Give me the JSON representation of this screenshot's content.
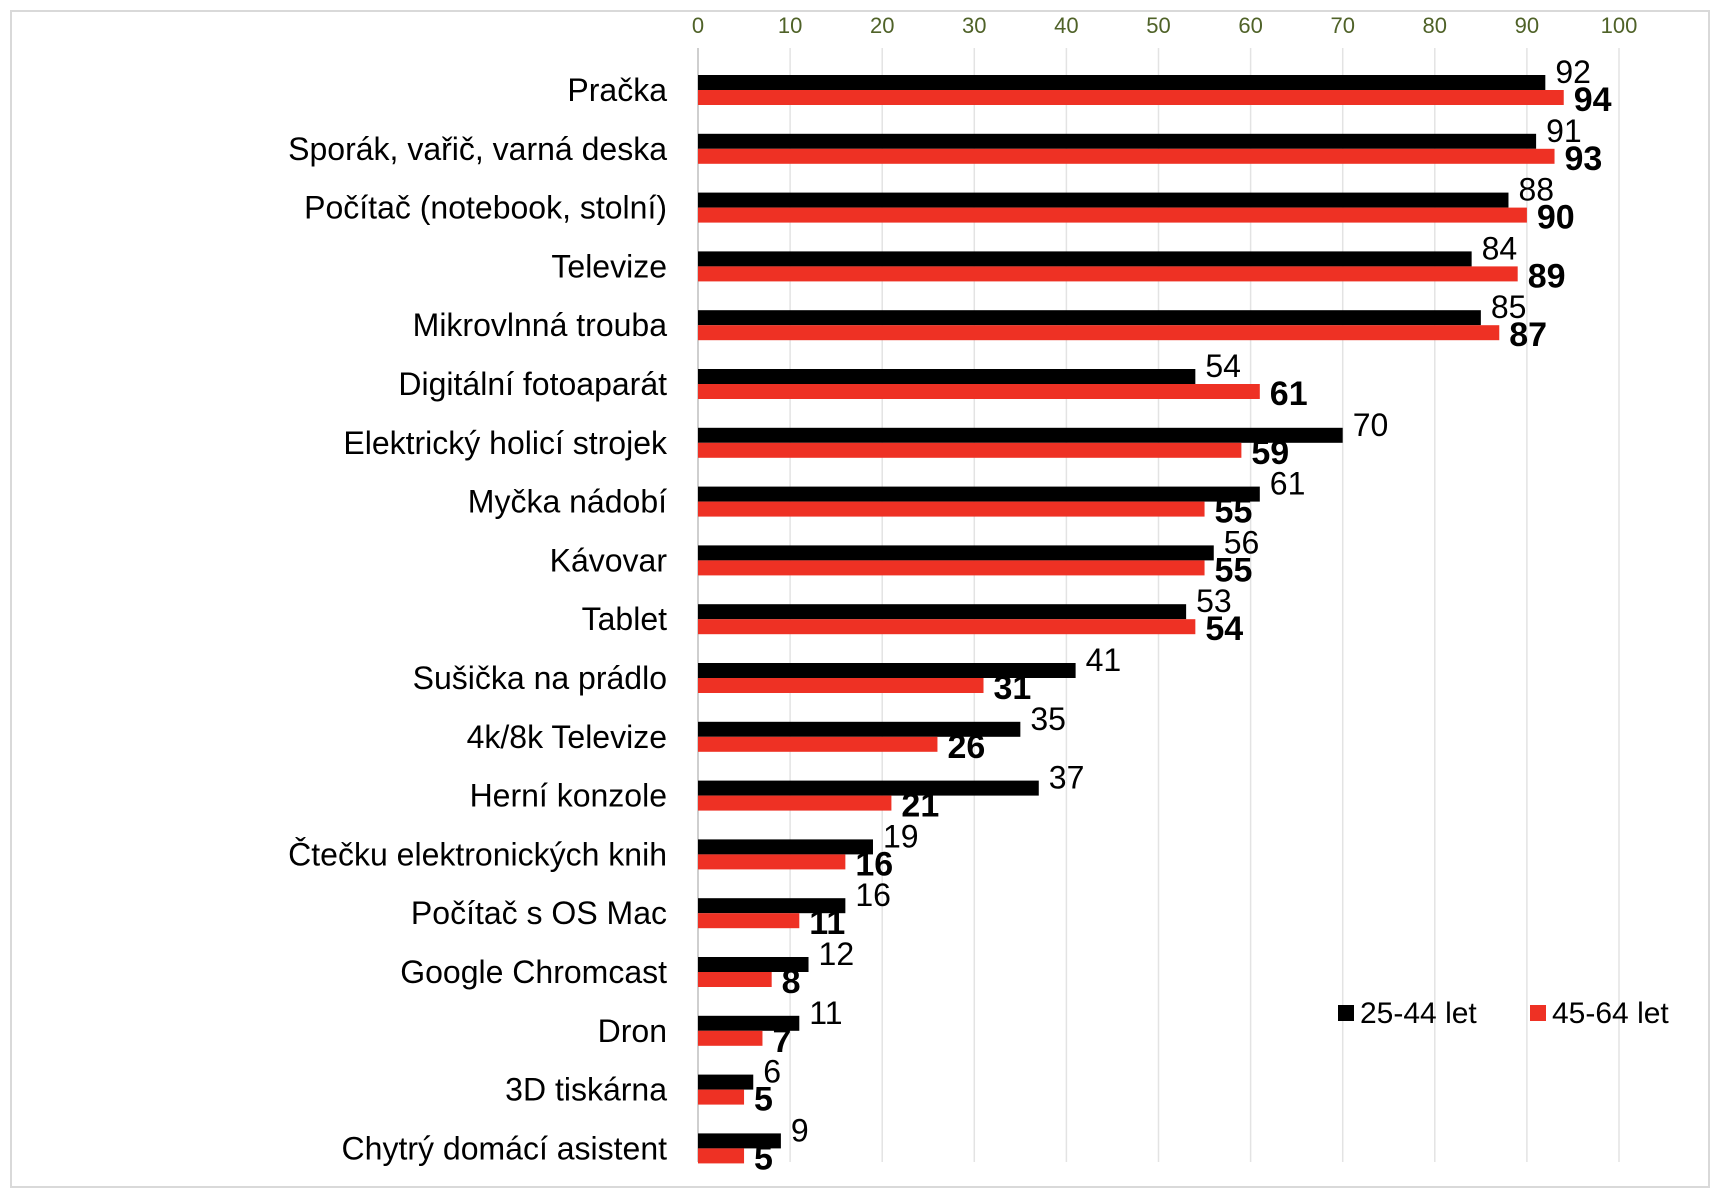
{
  "chart_data": {
    "type": "bar",
    "orientation": "horizontal",
    "xlim": [
      0,
      100
    ],
    "ticks": [
      "0",
      "10",
      "20",
      "30",
      "40",
      "50",
      "60",
      "70",
      "80",
      "90",
      "100"
    ],
    "tick_position": "top",
    "grid": true,
    "legend_position": "bottom-right",
    "categories": [
      "Pračka",
      "Sporák, vařič, varná deska",
      "Počítač (notebook, stolní)",
      "Televize",
      "Mikrovlnná trouba",
      "Digitální fotoaparát",
      "Elektrický holicí strojek",
      "Myčka nádobí",
      "Kávovar",
      "Tablet",
      "Sušička na prádlo",
      "4k/8k Televize",
      "Herní konzole",
      "Čtečku elektronických knih",
      "Počítač s OS Mac",
      "Google Chromcast",
      "Dron",
      "3D tiskárna",
      "Chytrý domácí asistent"
    ],
    "series": [
      {
        "name": "25-44 let",
        "color": "#000000",
        "values": [
          92,
          91,
          88,
          84,
          85,
          54,
          70,
          61,
          56,
          53,
          41,
          35,
          37,
          19,
          16,
          12,
          11,
          6,
          9
        ]
      },
      {
        "name": "45-64 let",
        "color": "#ee3124",
        "values": [
          94,
          93,
          90,
          89,
          87,
          61,
          59,
          55,
          55,
          54,
          31,
          26,
          21,
          16,
          11,
          8,
          7,
          5,
          5
        ]
      }
    ]
  }
}
